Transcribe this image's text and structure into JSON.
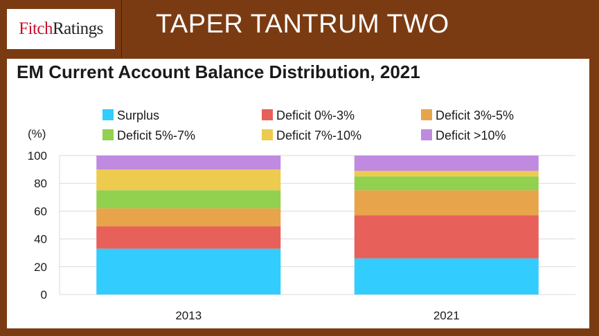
{
  "header": {
    "logo_part1": "Fitch",
    "logo_part2": "Ratings",
    "slide_title": "TAPER TANTRUM TWO"
  },
  "chart_data": {
    "type": "bar",
    "stacked": true,
    "title": "EM Current Account Balance Distribution, 2021",
    "ylabel": "(%)",
    "xlabel": "",
    "ylim": [
      0,
      100
    ],
    "yticks": [
      0,
      20,
      40,
      60,
      80,
      100
    ],
    "grid": true,
    "legend_position": "top",
    "categories": [
      "2013",
      "2021"
    ],
    "series": [
      {
        "name": "Surplus",
        "color": "#33ccff",
        "values": [
          33,
          26
        ]
      },
      {
        "name": "Deficit 0%-3%",
        "color": "#e8605a",
        "values": [
          16,
          31
        ]
      },
      {
        "name": "Deficit 3%-5%",
        "color": "#e8a44a",
        "values": [
          13,
          18
        ]
      },
      {
        "name": "Deficit 5%-7%",
        "color": "#92d050",
        "values": [
          13,
          10
        ]
      },
      {
        "name": "Deficit 7%-10%",
        "color": "#eccb4f",
        "values": [
          15,
          4
        ]
      },
      {
        "name": "Deficit >10%",
        "color": "#bf8ae0",
        "values": [
          10,
          11
        ]
      }
    ]
  }
}
